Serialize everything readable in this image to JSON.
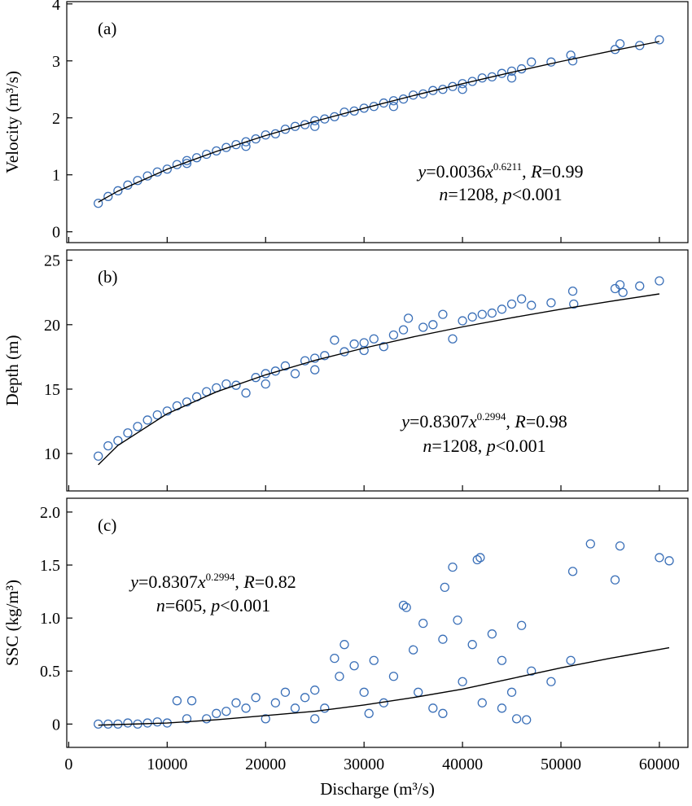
{
  "chart_data": [
    {
      "type": "scatter",
      "panel_label": "(a)",
      "ylabel": "Velocity (m³/s)",
      "color": "#3b70b8",
      "xlim": [
        -200,
        62900
      ],
      "xticks": [
        0,
        10000,
        20000,
        30000,
        40000,
        50000,
        60000
      ],
      "ylim": [
        -0.19,
        4.04
      ],
      "yticks": [
        0,
        1,
        2,
        3,
        4
      ],
      "x": [
        3000,
        4000,
        5000,
        6000,
        7000,
        8000,
        9000,
        10000,
        11000,
        12000,
        13000,
        14000,
        15000,
        16000,
        17000,
        18000,
        19000,
        20000,
        21000,
        22000,
        23000,
        24000,
        25000,
        26000,
        27000,
        28000,
        29000,
        30000,
        31000,
        32000,
        33000,
        34000,
        35000,
        36000,
        37000,
        38000,
        39000,
        40000,
        41000,
        42000,
        43000,
        44000,
        45000,
        46000,
        47000,
        49000,
        51000,
        51200,
        55500,
        56000,
        58000,
        60000,
        12000,
        18000,
        25000,
        33000,
        40000,
        45000
      ],
      "values": [
        0.5,
        0.62,
        0.72,
        0.82,
        0.9,
        0.98,
        1.05,
        1.1,
        1.18,
        1.25,
        1.3,
        1.36,
        1.42,
        1.48,
        1.53,
        1.58,
        1.63,
        1.7,
        1.72,
        1.8,
        1.85,
        1.88,
        1.95,
        1.98,
        2.02,
        2.1,
        2.12,
        2.17,
        2.2,
        2.26,
        2.3,
        2.33,
        2.4,
        2.42,
        2.48,
        2.5,
        2.55,
        2.6,
        2.64,
        2.7,
        2.72,
        2.78,
        2.82,
        2.86,
        2.98,
        2.98,
        3.1,
        3.0,
        3.2,
        3.3,
        3.27,
        3.37,
        1.2,
        1.5,
        1.85,
        2.2,
        2.5,
        2.7
      ],
      "fit": {
        "x": [
          3000,
          5000,
          10000,
          15000,
          20000,
          25000,
          30000,
          35000,
          40000,
          45000,
          50000,
          55000,
          60000
        ],
        "values": [
          0.52,
          0.714,
          1.098,
          1.41,
          1.689,
          1.94,
          2.17,
          2.39,
          2.6,
          2.8,
          2.99,
          3.17,
          3.34
        ]
      },
      "annotation": {
        "line1": [
          "y",
          "=0.0036",
          "x",
          "0.6211",
          ", ",
          "R",
          "=0.99"
        ],
        "line2": [
          "n",
          "=1208, ",
          "p",
          "<0.001"
        ]
      }
    },
    {
      "type": "scatter",
      "panel_label": "(b)",
      "ylabel": "Depth (m)",
      "color": "#3b70b8",
      "xlim": [
        -200,
        62900
      ],
      "xticks": [
        0,
        10000,
        20000,
        30000,
        40000,
        50000,
        60000
      ],
      "ylim": [
        7.1,
        25.8
      ],
      "yticks": [
        10,
        15,
        20,
        25
      ],
      "x": [
        3000,
        4000,
        5000,
        6000,
        7000,
        8000,
        9000,
        10000,
        11000,
        12000,
        13000,
        14000,
        15000,
        16000,
        17000,
        18000,
        19000,
        20000,
        21000,
        22000,
        23000,
        24000,
        25000,
        26000,
        27000,
        28000,
        29000,
        30000,
        31000,
        32000,
        33000,
        34000,
        34500,
        36000,
        37000,
        38000,
        39000,
        40000,
        41000,
        42000,
        43000,
        44000,
        45000,
        46000,
        47000,
        49000,
        51200,
        51300,
        55500,
        56000,
        56300,
        58000,
        60000,
        20000,
        25000,
        30000
      ],
      "values": [
        9.8,
        10.6,
        11.0,
        11.6,
        12.1,
        12.6,
        13.0,
        13.3,
        13.7,
        14.0,
        14.4,
        14.8,
        15.1,
        15.4,
        15.3,
        14.7,
        15.9,
        16.2,
        16.4,
        16.8,
        16.2,
        17.2,
        17.4,
        17.6,
        18.8,
        17.9,
        18.5,
        18.6,
        18.9,
        18.3,
        19.2,
        19.6,
        20.5,
        19.8,
        20.0,
        20.8,
        18.9,
        20.3,
        20.6,
        20.8,
        20.9,
        21.2,
        21.6,
        22.0,
        21.5,
        21.7,
        22.6,
        21.6,
        22.8,
        23.1,
        22.5,
        23.0,
        23.4,
        15.4,
        16.5,
        18.0
      ],
      "fit": {
        "x": [
          3000,
          5000,
          10000,
          15000,
          20000,
          25000,
          30000,
          35000,
          40000,
          45000,
          50000,
          55000,
          60000
        ],
        "values": [
          9.13,
          10.64,
          13.09,
          14.79,
          16.11,
          17.23,
          18.19,
          19.05,
          19.83,
          20.54,
          21.2,
          21.81,
          22.39
        ]
      },
      "annotation": {
        "line1": [
          "y",
          "=0.8307",
          "x",
          "0.2994",
          ", ",
          "R",
          "=0.98"
        ],
        "line2": [
          "n",
          "=1208, ",
          "p",
          "<0.001"
        ]
      }
    },
    {
      "type": "scatter",
      "panel_label": "(c)",
      "ylabel": "SSC (kg/m³)",
      "xlabel": "Discharge (m³/s)",
      "color": "#3b70b8",
      "xlim": [
        -200,
        62900
      ],
      "xticks": [
        0,
        10000,
        20000,
        30000,
        40000,
        50000,
        60000
      ],
      "ylim": [
        -0.22,
        2.13
      ],
      "yticks": [
        0,
        {
          "value": 0.5,
          "label": "0.5"
        },
        {
          "value": 1,
          "label": "1.0"
        },
        {
          "value": 1.5,
          "label": "1.5"
        },
        {
          "value": 2,
          "label": "2.0"
        }
      ],
      "x": [
        3000,
        4000,
        5000,
        6000,
        7000,
        8000,
        9000,
        10000,
        11000,
        12000,
        12500,
        14000,
        15000,
        16000,
        17000,
        18000,
        19000,
        20000,
        21000,
        22000,
        23000,
        24000,
        25000,
        26000,
        27000,
        27500,
        28000,
        29000,
        30000,
        30500,
        31000,
        32000,
        33000,
        34000,
        34300,
        35000,
        35500,
        36000,
        37000,
        38000,
        38200,
        39000,
        39500,
        40000,
        41000,
        41500,
        41800,
        42000,
        43000,
        44000,
        45000,
        45500,
        46000,
        46500,
        47000,
        49000,
        51000,
        51200,
        53000,
        55500,
        56000,
        60000,
        61000,
        38000,
        44000,
        25000
      ],
      "values": [
        0,
        0,
        0,
        0.01,
        0,
        0.01,
        0.02,
        0.01,
        0.22,
        0.05,
        0.22,
        0.05,
        0.1,
        0.12,
        0.2,
        0.15,
        0.25,
        0.05,
        0.2,
        0.3,
        0.15,
        0.25,
        0.32,
        0.15,
        0.62,
        0.45,
        0.75,
        0.55,
        0.3,
        0.1,
        0.6,
        0.2,
        0.45,
        1.12,
        1.1,
        0.7,
        0.3,
        0.95,
        0.15,
        0.8,
        1.29,
        1.48,
        0.98,
        0.4,
        0.75,
        1.55,
        1.57,
        0.2,
        0.85,
        0.6,
        0.3,
        0.05,
        0.93,
        0.04,
        0.5,
        0.4,
        0.6,
        1.44,
        1.7,
        1.36,
        1.68,
        1.57,
        1.54,
        0.1,
        0.15,
        0.05
      ],
      "fit": {
        "x": [
          3000,
          10000,
          15000,
          20000,
          25000,
          30000,
          35000,
          40000,
          45000,
          50000,
          55000,
          61000
        ],
        "values": [
          -0.01,
          0.01,
          0.04,
          0.08,
          0.12,
          0.18,
          0.25,
          0.33,
          0.43,
          0.53,
          0.62,
          0.72
        ]
      },
      "annotation": {
        "line1": [
          "y",
          "=0.8307",
          "x",
          "0.2994",
          ", ",
          "R",
          "=0.82"
        ],
        "line2": [
          "n",
          "=605, ",
          "p",
          "<0.001"
        ]
      }
    }
  ]
}
